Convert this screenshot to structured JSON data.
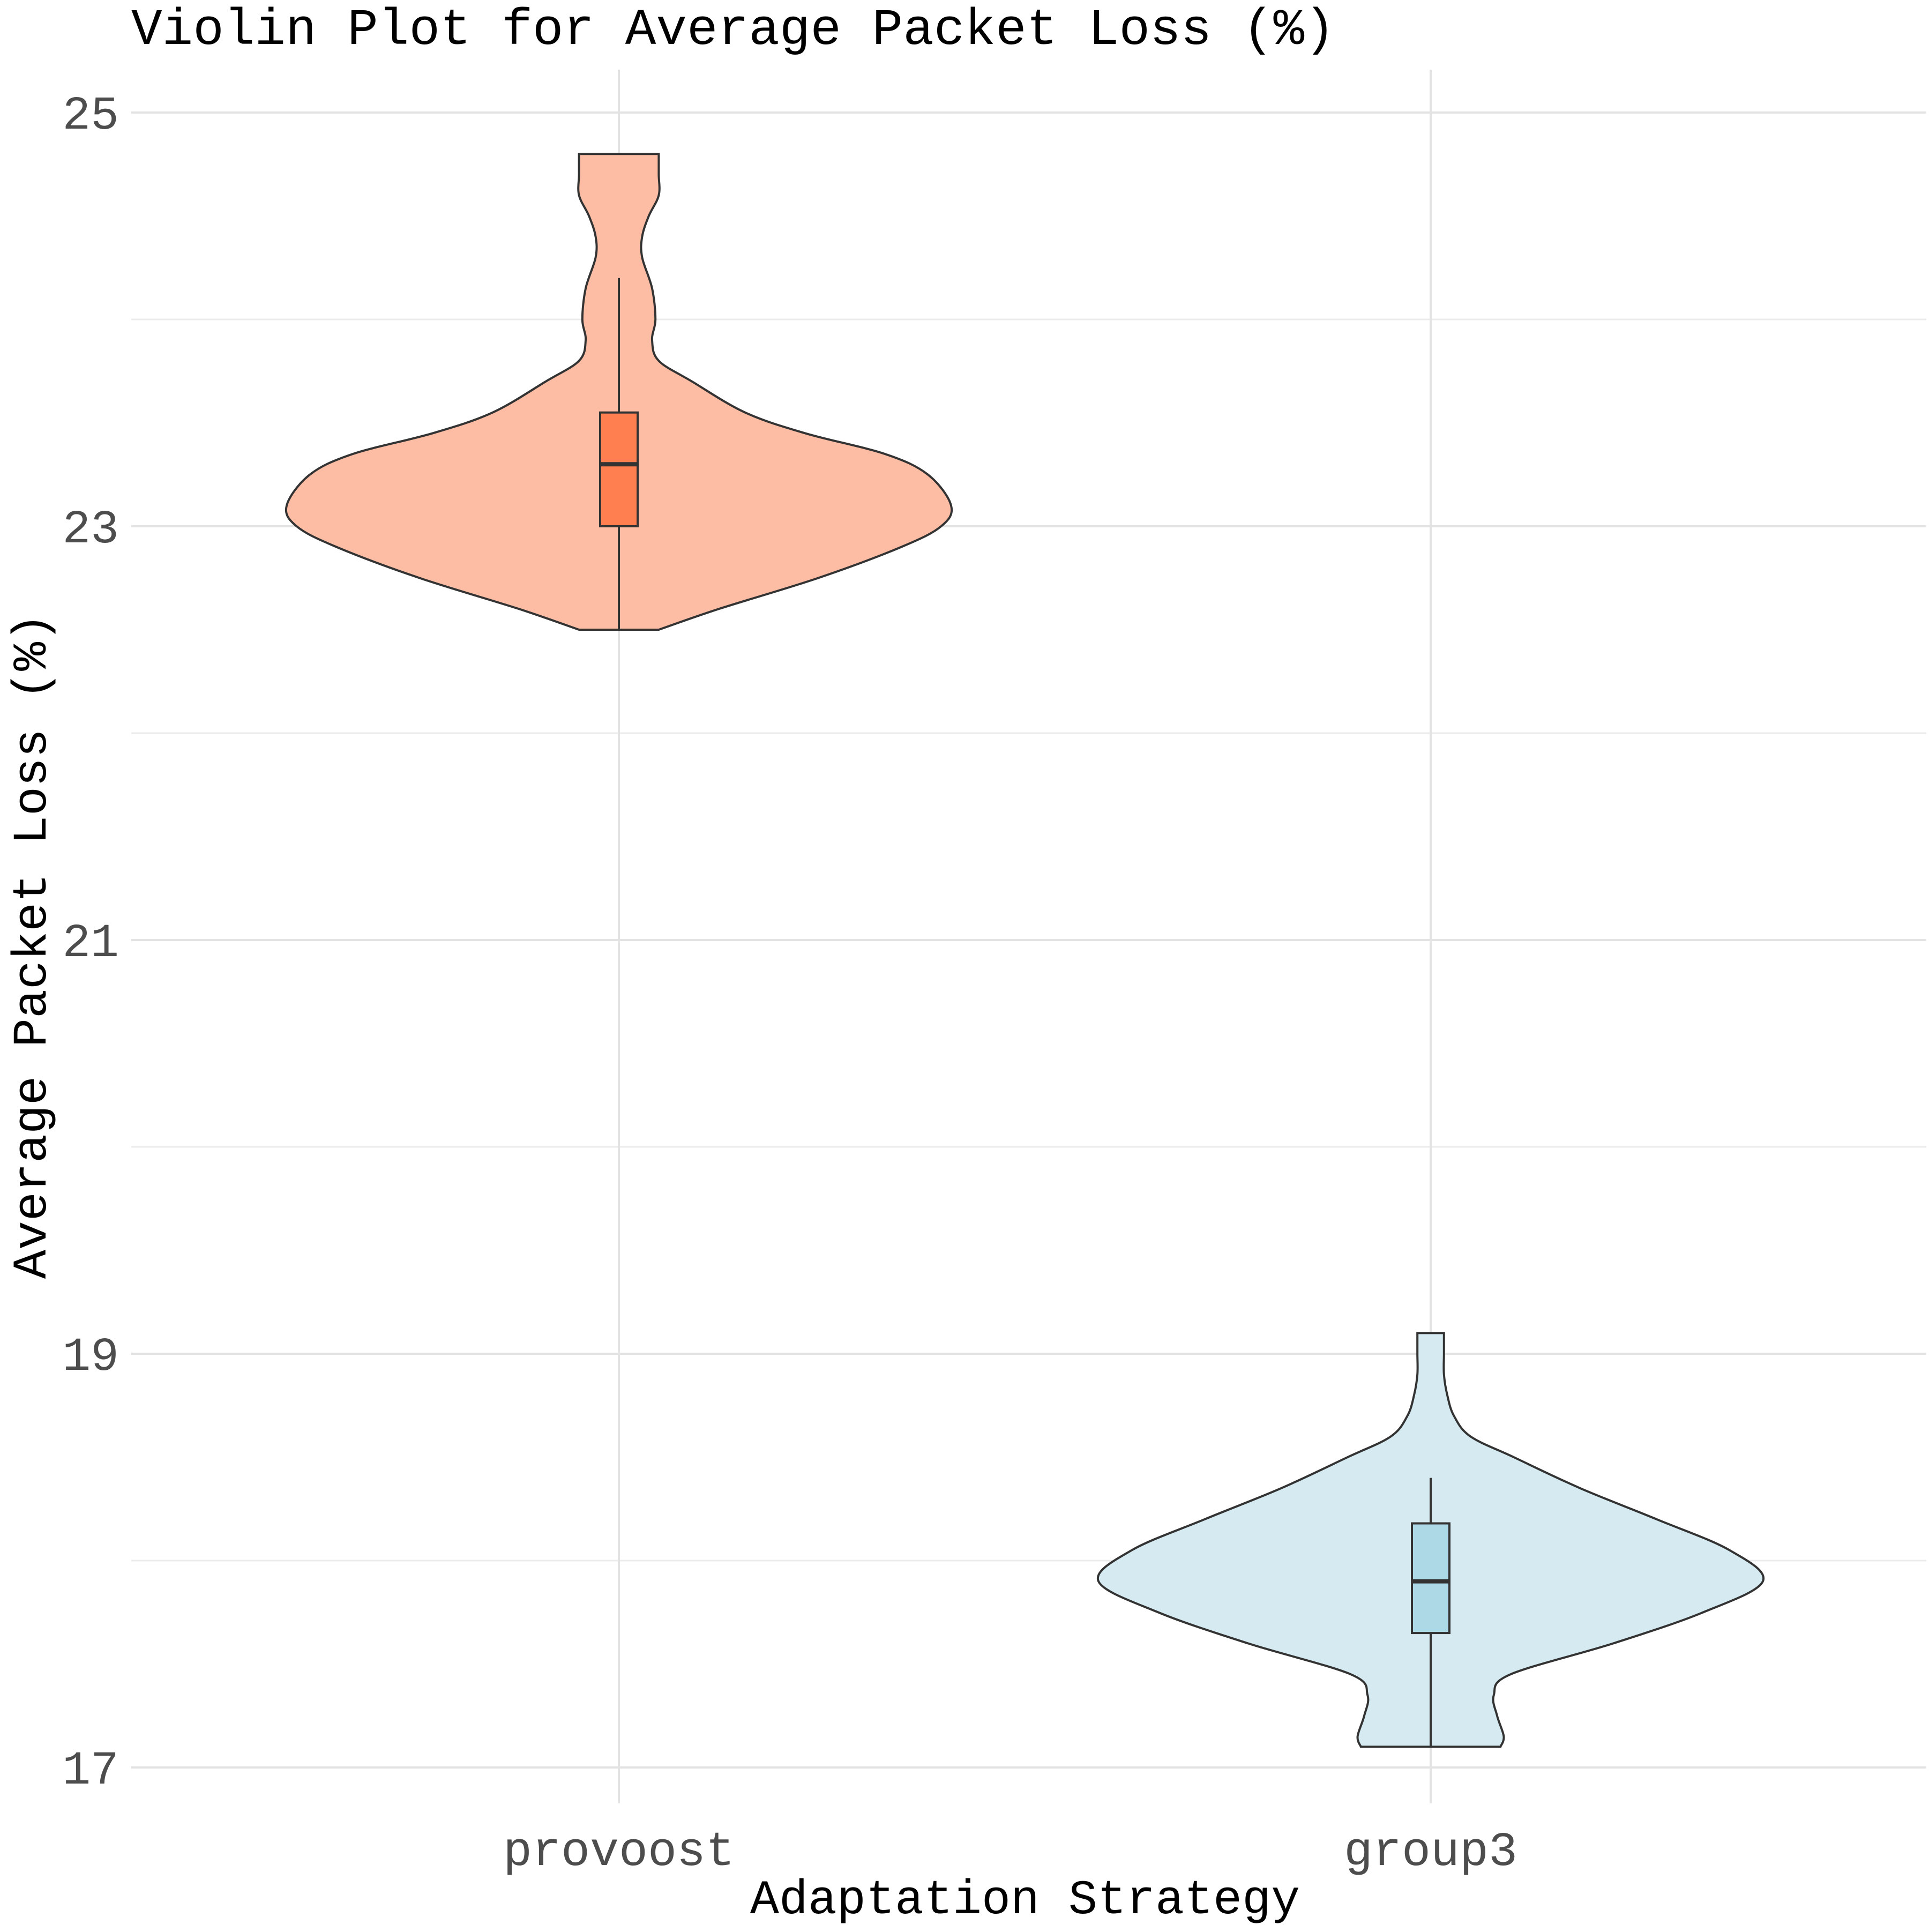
{
  "chart_data": {
    "type": "violin",
    "title": "Violin Plot for Average Packet Loss (%)",
    "xlabel": "Adaptation Strategy",
    "ylabel": "Average Packet Loss (%)",
    "categories": [
      "provoost",
      "group3"
    ],
    "ylim": [
      16.8,
      25.2
    ],
    "yticks": [
      17,
      19,
      21,
      23,
      25
    ],
    "grid": true,
    "legend": "none",
    "series": [
      {
        "category": "provoost",
        "violin_color": "#fdbda5",
        "box_color": "#ff7f50",
        "min": 22.5,
        "q1": 23.0,
        "median": 23.3,
        "q3": 23.55,
        "whisker_low": 22.5,
        "whisker_high": 24.2,
        "max": 24.8,
        "density": [
          [
            22.5,
            0.12
          ],
          [
            22.6,
            0.3
          ],
          [
            22.75,
            0.6
          ],
          [
            22.9,
            0.85
          ],
          [
            23.0,
            0.97
          ],
          [
            23.1,
            1.0
          ],
          [
            23.25,
            0.93
          ],
          [
            23.35,
            0.8
          ],
          [
            23.45,
            0.56
          ],
          [
            23.55,
            0.38
          ],
          [
            23.7,
            0.22
          ],
          [
            23.8,
            0.12
          ],
          [
            23.9,
            0.1
          ],
          [
            24.0,
            0.11
          ],
          [
            24.15,
            0.1
          ],
          [
            24.3,
            0.07
          ],
          [
            24.4,
            0.07
          ],
          [
            24.5,
            0.09
          ],
          [
            24.6,
            0.12
          ],
          [
            24.7,
            0.12
          ],
          [
            24.8,
            0.12
          ]
        ]
      },
      {
        "category": "group3",
        "violin_color": "#d6ebf1",
        "box_color": "#add8e6",
        "min": 17.1,
        "q1": 17.65,
        "median": 17.9,
        "q3": 18.18,
        "whisker_low": 17.1,
        "whisker_high": 18.4,
        "max": 19.1,
        "density": [
          [
            17.1,
            0.21
          ],
          [
            17.15,
            0.22
          ],
          [
            17.25,
            0.2
          ],
          [
            17.35,
            0.19
          ],
          [
            17.45,
            0.24
          ],
          [
            17.6,
            0.55
          ],
          [
            17.75,
            0.82
          ],
          [
            17.9,
            1.0
          ],
          [
            18.05,
            0.9
          ],
          [
            18.2,
            0.68
          ],
          [
            18.35,
            0.45
          ],
          [
            18.5,
            0.25
          ],
          [
            18.6,
            0.12
          ],
          [
            18.7,
            0.07
          ],
          [
            18.8,
            0.05
          ],
          [
            18.9,
            0.04
          ],
          [
            19.0,
            0.04
          ],
          [
            19.1,
            0.04
          ]
        ]
      }
    ]
  }
}
